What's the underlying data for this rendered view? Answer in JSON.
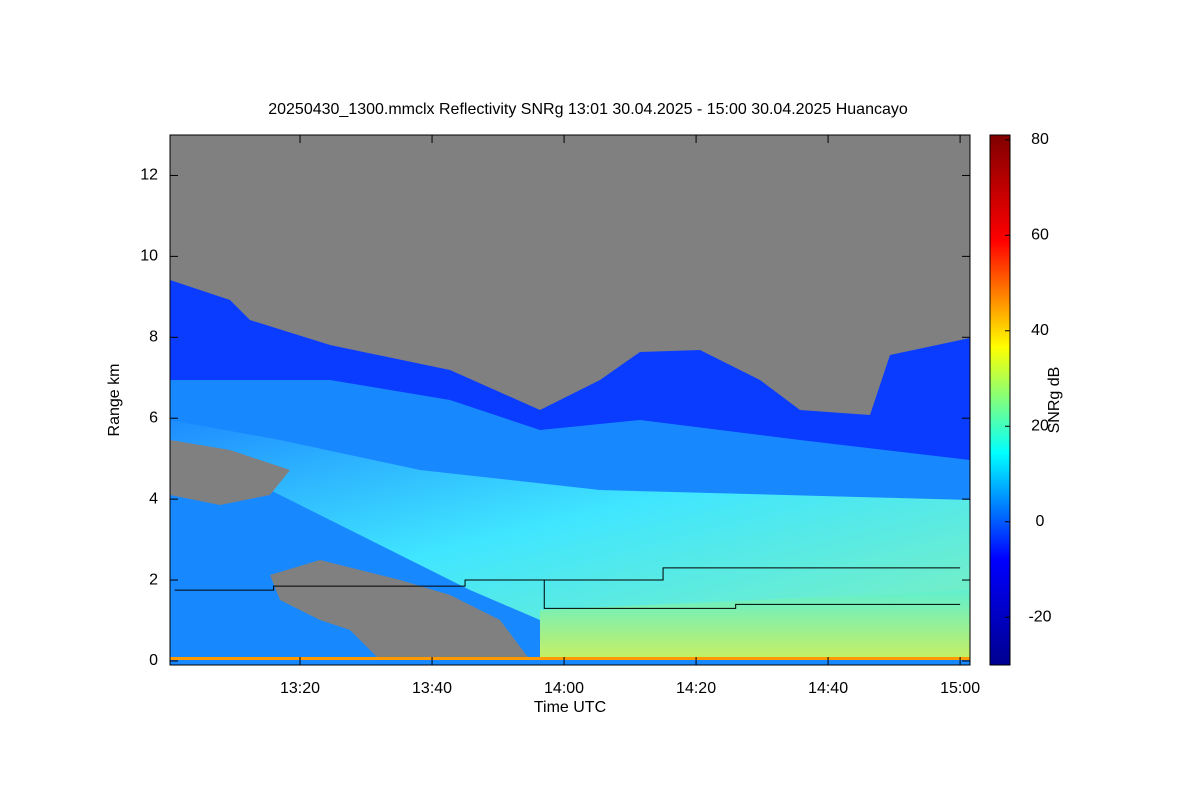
{
  "chart_data": {
    "type": "heatmap",
    "title": "20250430_1300.mmclx Reflectivity SNRg   13:01 30.04.2025 - 15:00 30.04.2025 Huancayo",
    "xlabel": "Time UTC",
    "ylabel": "Range km",
    "xlim": [
      780.3,
      901.5
    ],
    "xticks": [
      {
        "value": 800,
        "label": "13:20"
      },
      {
        "value": 820,
        "label": "13:40"
      },
      {
        "value": 840,
        "label": "14:00"
      },
      {
        "value": 860,
        "label": "14:20"
      },
      {
        "value": 880,
        "label": "14:40"
      },
      {
        "value": 900,
        "label": "15:00"
      }
    ],
    "ylim": [
      -0.1,
      13
    ],
    "yticks": [
      0,
      2,
      4,
      6,
      8,
      10,
      12
    ],
    "series": [
      {
        "color": "#000000",
        "x": [
          781,
          796,
          796,
          825,
          825,
          855,
          855,
          900
        ],
        "values": [
          1.75,
          1.75,
          1.85,
          1.85,
          2.0,
          2.0,
          2.3,
          2.3
        ]
      },
      {
        "color": "#000000",
        "x": [
          837,
          837,
          866,
          866,
          900
        ],
        "values": [
          2.0,
          1.3,
          1.3,
          1.4,
          1.4
        ]
      }
    ],
    "colorbar": {
      "label": "SNRg dB",
      "lim": [
        -30,
        81
      ],
      "ticks": [
        -20,
        0,
        20,
        40,
        60,
        80
      ],
      "colors": [
        "#00008f",
        "#0000ff",
        "#00ffff",
        "#ffff00",
        "#ff0000",
        "#800000"
      ]
    }
  }
}
